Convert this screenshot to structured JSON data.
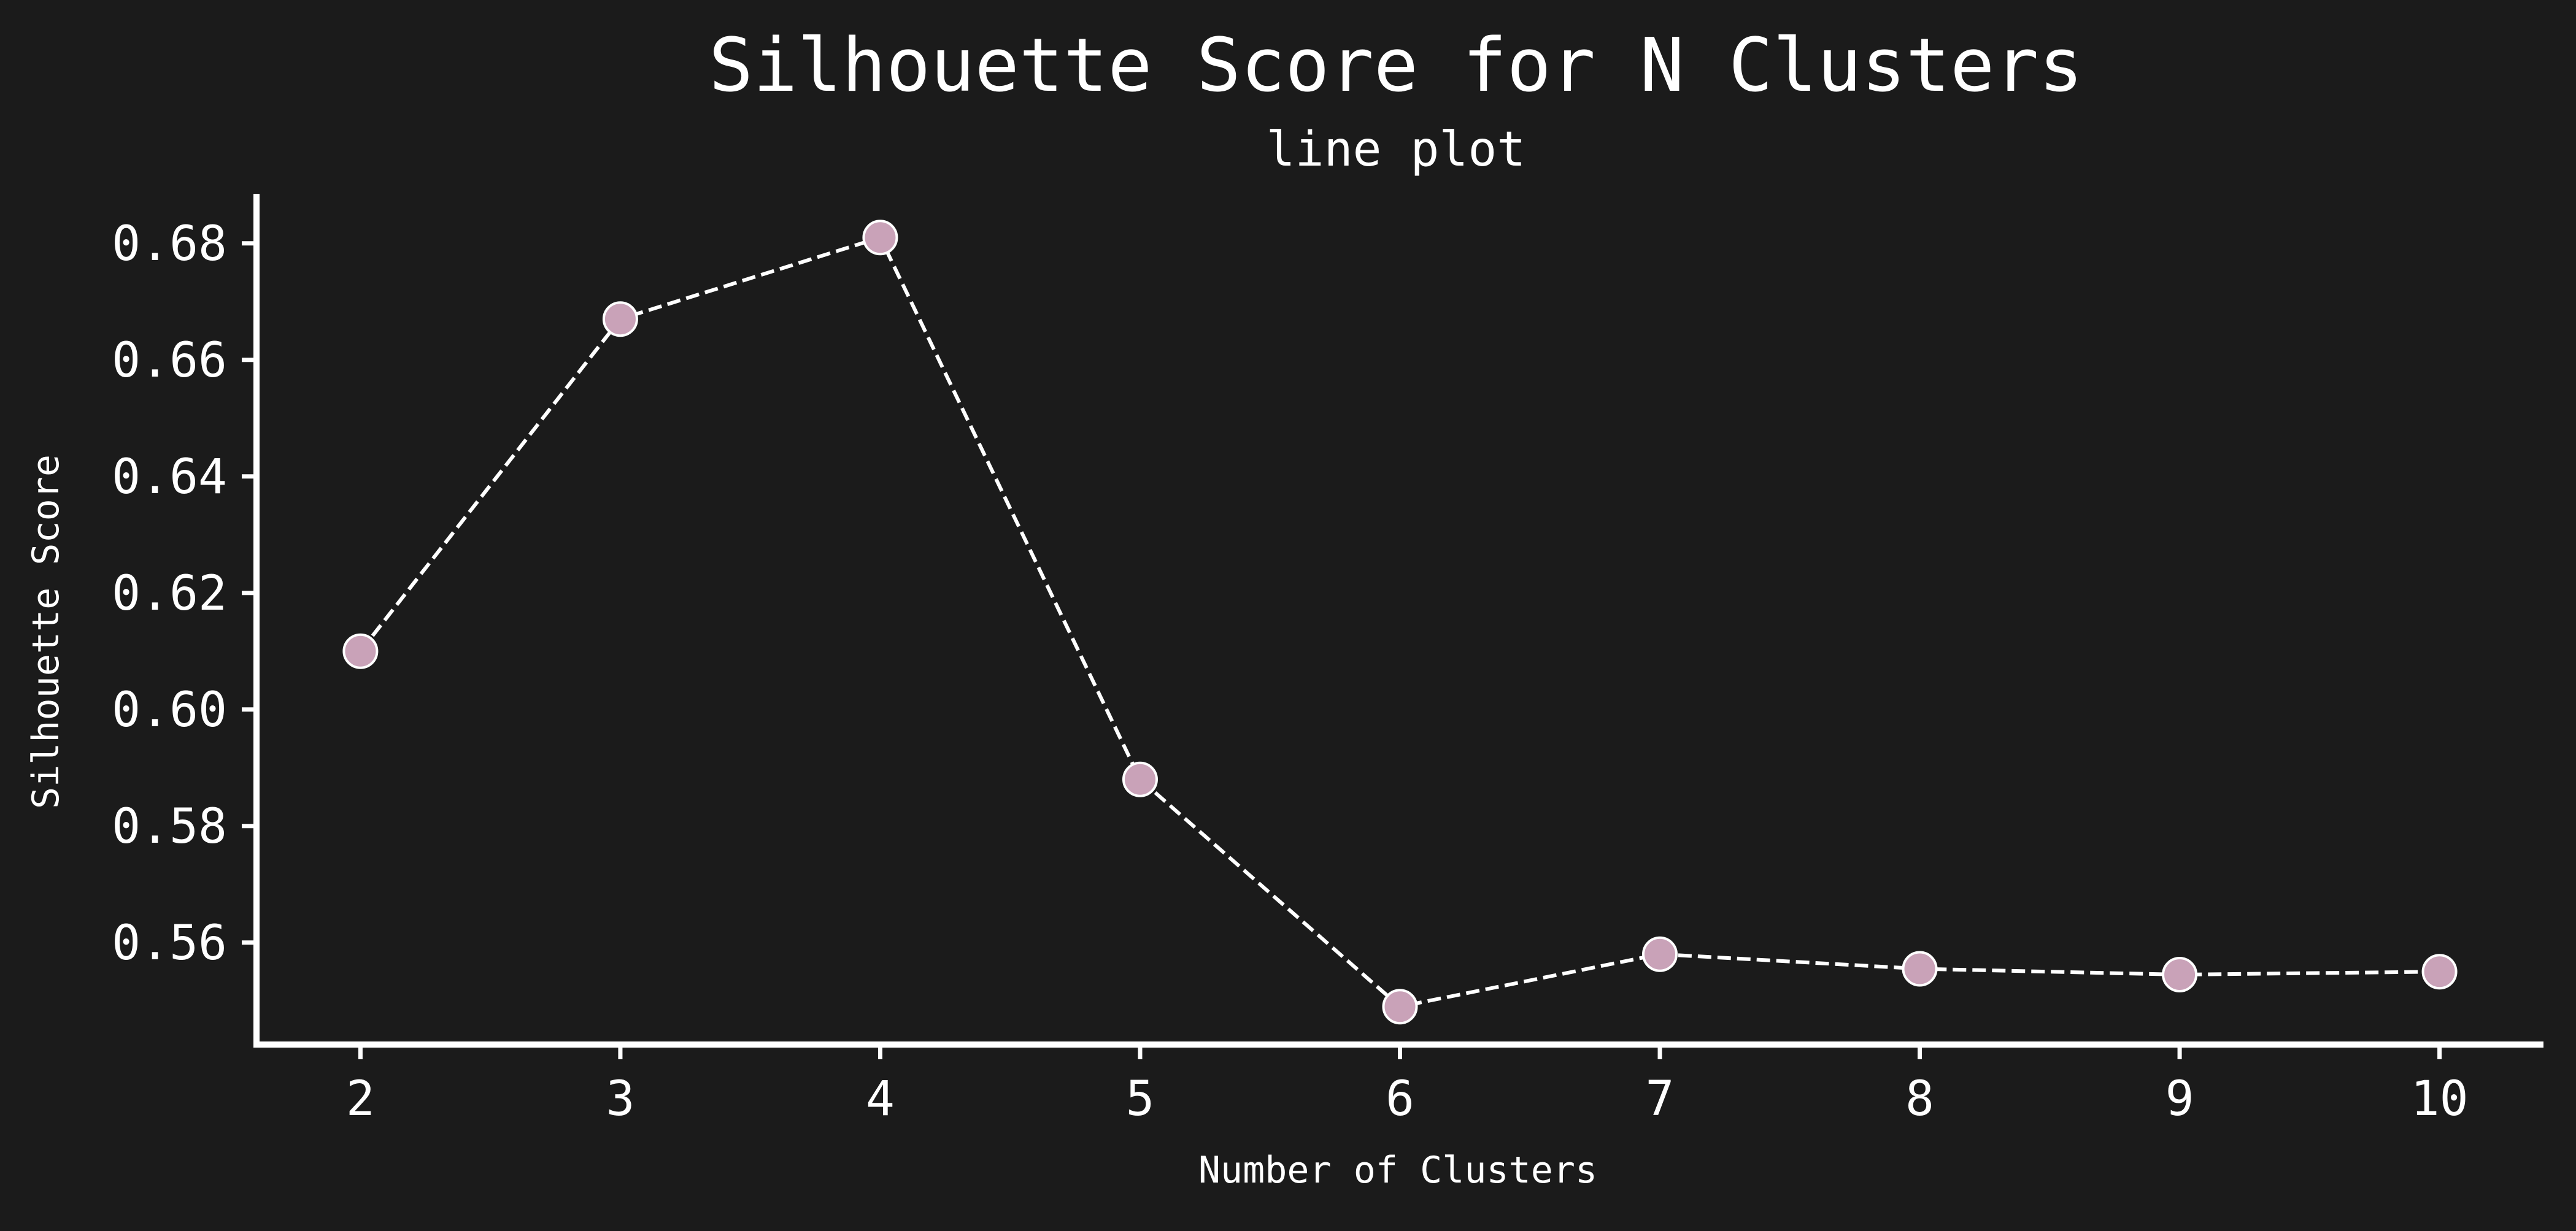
{
  "chart_data": {
    "type": "line",
    "title": "Silhouette Score for N Clusters",
    "subtitle": "line plot",
    "xlabel": "Number of Clusters",
    "ylabel": "Silhouette Score",
    "x": [
      2,
      3,
      4,
      5,
      6,
      7,
      8,
      9,
      10
    ],
    "series": [
      {
        "values": [
          0.61,
          0.667,
          0.681,
          0.588,
          0.549,
          0.558,
          0.5555,
          0.5545,
          0.555
        ]
      }
    ],
    "xlim": [
      1.6,
      10.4
    ],
    "ylim": [
      0.5425,
      0.6885
    ],
    "x_ticks": [
      2,
      3,
      4,
      5,
      6,
      7,
      8,
      9,
      10
    ],
    "x_tick_labels": [
      "2",
      "3",
      "4",
      "5",
      "6",
      "7",
      "8",
      "9",
      "10"
    ],
    "y_ticks": [
      0.56,
      0.58,
      0.6,
      0.62,
      0.64,
      0.66,
      0.68
    ],
    "y_tick_labels": [
      "0.56",
      "0.58",
      "0.60",
      "0.62",
      "0.64",
      "0.66",
      "0.68"
    ],
    "grid": false,
    "line_style": "dashed",
    "colors": {
      "background": "#1b1b1b",
      "text": "#ffffff",
      "axis": "#ffffff",
      "line": "#ffffff",
      "marker_fill": "#c9a2b8",
      "marker_edge": "#ffffff"
    }
  }
}
